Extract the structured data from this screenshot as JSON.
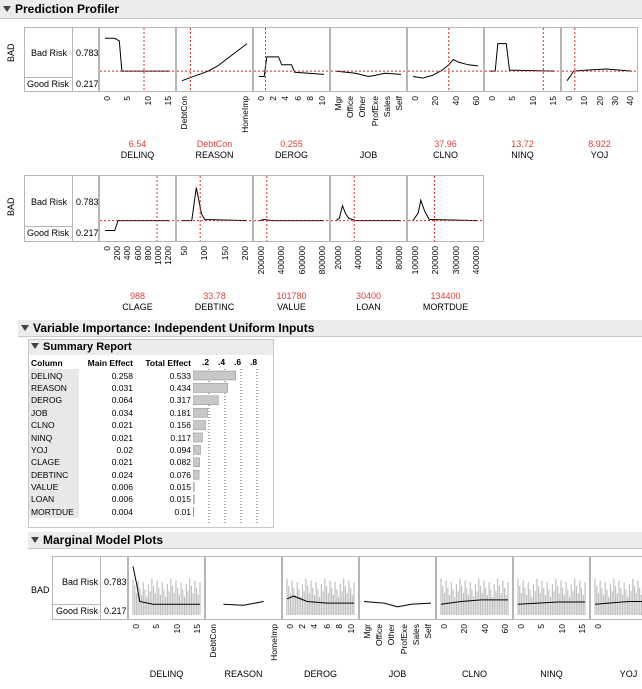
{
  "profiler": {
    "title": "Prediction Profiler",
    "y_label": "BAD",
    "bad_label": "Bad Risk",
    "bad_value": "0.783",
    "good_label": "Good Risk",
    "good_value": "0.217",
    "row1": [
      {
        "name": "DELINQ",
        "value": "6.54",
        "ticks": [
          "0",
          "5",
          "10",
          "15"
        ]
      },
      {
        "name": "REASON",
        "value": "DebtCon",
        "ticks": [
          "DebtCon",
          "HomeImp"
        ]
      },
      {
        "name": "DEROG",
        "value": "0.255",
        "ticks": [
          "0",
          "2",
          "4",
          "6",
          "8",
          "10"
        ]
      },
      {
        "name": "JOB",
        "value": "",
        "ticks": [
          "Mgr",
          "Office",
          "Other",
          "ProfExe",
          "Sales",
          "Self"
        ]
      },
      {
        "name": "CLNO",
        "value": "37.96",
        "ticks": [
          "0",
          "20",
          "40",
          "60"
        ]
      },
      {
        "name": "NINQ",
        "value": "13.72",
        "ticks": [
          "0",
          "5",
          "10",
          "15"
        ]
      },
      {
        "name": "YOJ",
        "value": "8.922",
        "ticks": [
          "0",
          "10",
          "20",
          "30",
          "40"
        ]
      }
    ],
    "row2": [
      {
        "name": "CLAGE",
        "value": "988",
        "ticks": [
          "0",
          "200",
          "400",
          "600",
          "800",
          "1000",
          "1200"
        ]
      },
      {
        "name": "DEBTINC",
        "value": "33.78",
        "ticks": [
          "50",
          "100",
          "150",
          "200"
        ]
      },
      {
        "name": "VALUE",
        "value": "101780",
        "ticks": [
          "200000",
          "400000",
          "600000",
          "800000"
        ]
      },
      {
        "name": "LOAN",
        "value": "30400",
        "ticks": [
          "20000",
          "40000",
          "60000",
          "80000"
        ]
      },
      {
        "name": "MORTDUE",
        "value": "134400",
        "ticks": [
          "100000",
          "200000",
          "300000",
          "400000"
        ]
      }
    ]
  },
  "importance": {
    "title": "Variable Importance: Independent Uniform Inputs",
    "summary_title": "Summary Report",
    "headers": [
      "Column",
      "Main Effect",
      "Total Effect"
    ],
    "axis_ticks": [
      ".2",
      ".4",
      ".6",
      ".8"
    ],
    "rows": [
      {
        "column": "DELINQ",
        "main": "0.258",
        "total": "0.533"
      },
      {
        "column": "REASON",
        "main": "0.031",
        "total": "0.434"
      },
      {
        "column": "DEROG",
        "main": "0.064",
        "total": "0.317"
      },
      {
        "column": "JOB",
        "main": "0.034",
        "total": "0.181"
      },
      {
        "column": "CLNO",
        "main": "0.021",
        "total": "0.156"
      },
      {
        "column": "NINQ",
        "main": "0.021",
        "total": "0.117"
      },
      {
        "column": "YOJ",
        "main": "0.02",
        "total": "0.094"
      },
      {
        "column": "CLAGE",
        "main": "0.021",
        "total": "0.082"
      },
      {
        "column": "DEBTINC",
        "main": "0.024",
        "total": "0.076"
      },
      {
        "column": "VALUE",
        "main": "0.006",
        "total": "0.015"
      },
      {
        "column": "LOAN",
        "main": "0.006",
        "total": "0.015"
      },
      {
        "column": "MORTDUE",
        "main": "0.004",
        "total": "0.01"
      }
    ],
    "bar_values": [
      0.533,
      0.434,
      0.317,
      0.181,
      0.156,
      0.117,
      0.094,
      0.082,
      0.076,
      0.015,
      0.015,
      0.01
    ]
  },
  "marginal": {
    "title": "Marginal Model Plots",
    "y_label": "BAD",
    "bad_label": "Bad Risk",
    "bad_value": "0.783",
    "good_label": "Good Risk",
    "good_value": "0.217",
    "plots": [
      {
        "name": "DELINQ",
        "ticks": [
          "0",
          "5",
          "10",
          "15"
        ]
      },
      {
        "name": "REASON",
        "ticks": [
          "DebtCon",
          "HomeImp"
        ]
      },
      {
        "name": "DEROG",
        "ticks": [
          "0",
          "2",
          "4",
          "6",
          "8",
          "10"
        ]
      },
      {
        "name": "JOB",
        "ticks": [
          "Mgr",
          "Office",
          "Other",
          "ProfExe",
          "Sales",
          "Self"
        ]
      },
      {
        "name": "CLNO",
        "ticks": [
          "0",
          "20",
          "40",
          "60"
        ]
      },
      {
        "name": "NINQ",
        "ticks": [
          "0",
          "5",
          "10",
          "15"
        ]
      },
      {
        "name": "YOJ",
        "ticks": [
          "0",
          "20"
        ]
      }
    ]
  },
  "colors": {
    "line": "#000000",
    "crosshair": "#d0312d",
    "bar": "#c8c8c8",
    "band": "#c0c0c0"
  }
}
